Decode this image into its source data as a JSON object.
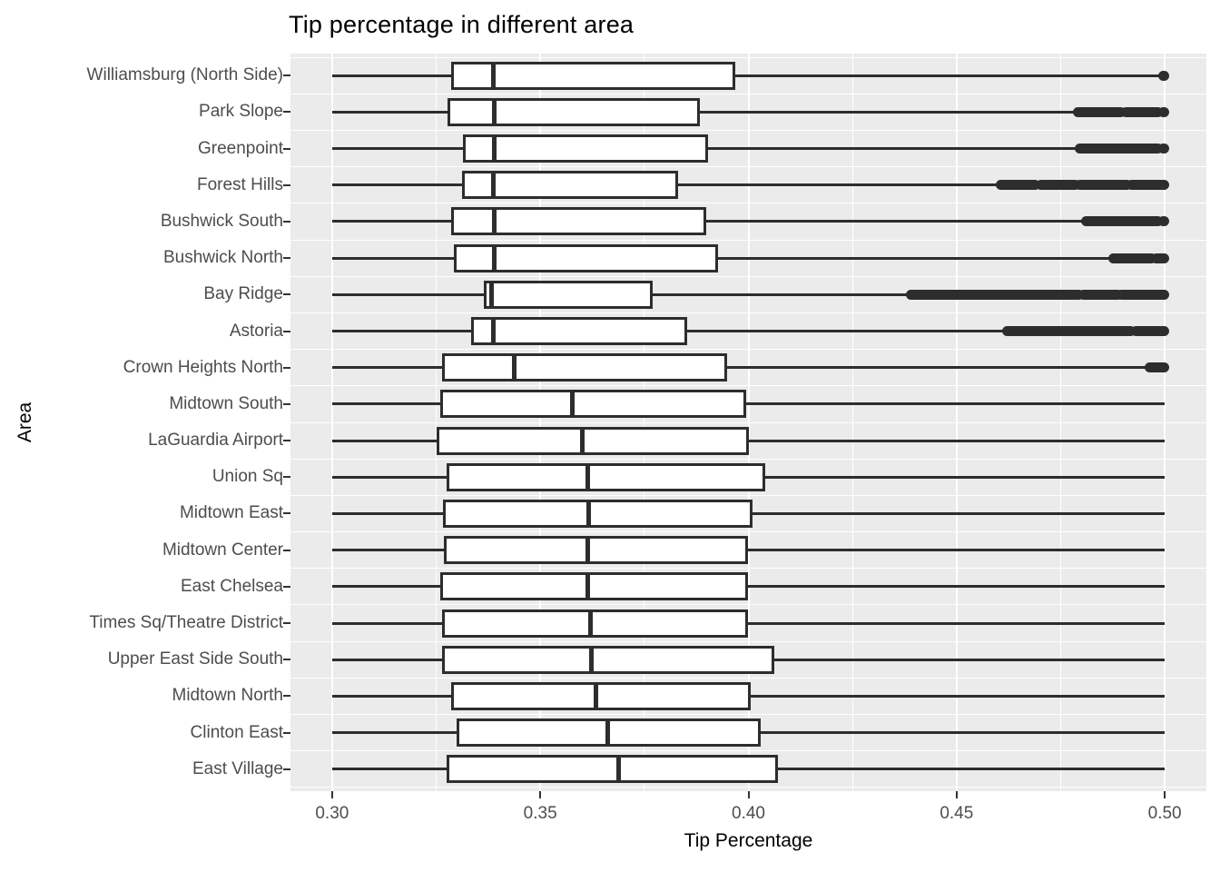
{
  "chart_data": {
    "type": "boxplot",
    "orientation": "horizontal",
    "title": "Tip percentage in different area",
    "xlabel": "Tip Percentage",
    "ylabel": "Area",
    "xlim": [
      0.29,
      0.51
    ],
    "x_ticks": {
      "values": [
        0.3,
        0.35,
        0.4,
        0.45,
        0.5
      ],
      "labels": [
        "0.30",
        "0.35",
        "0.40",
        "0.45",
        "0.50"
      ]
    },
    "x_minor_ticks": [
      0.325,
      0.375,
      0.425,
      0.475
    ],
    "grid": "on",
    "legend": "none",
    "colors": {
      "panel_bg": "#EBEBEB",
      "grid": "#FFFFFF",
      "box_stroke": "#2D2D2D",
      "box_fill": "#FFFFFF",
      "axis_text": "#4D4D4D",
      "title_text": "#000000"
    },
    "categories": [
      "Williamsburg (North Side)",
      "Park Slope",
      "Greenpoint",
      "Forest Hills",
      "Bushwick South",
      "Bushwick North",
      "Bay Ridge",
      "Astoria",
      "Crown Heights North",
      "Midtown South",
      "LaGuardia Airport",
      "Union Sq",
      "Midtown East",
      "Midtown Center",
      "East Chelsea",
      "Times Sq/Theatre District",
      "Upper East Side South",
      "Midtown North",
      "Clinton East",
      "East Village"
    ],
    "series": [
      {
        "name": "Williamsburg (North Side)",
        "whisker_low": 0.3,
        "q1": 0.3286,
        "median": 0.3388,
        "q3": 0.3968,
        "whisker_high": 0.4993,
        "outliers": [
          [
            0.4995,
            0.5
          ]
        ]
      },
      {
        "name": "Park Slope",
        "whisker_low": 0.3,
        "q1": 0.3278,
        "median": 0.339,
        "q3": 0.3883,
        "whisker_high": 0.4788,
        "outliers": [
          [
            0.479,
            0.4895
          ],
          [
            0.4905,
            0.4985
          ],
          [
            0.4995,
            0.5
          ]
        ]
      },
      {
        "name": "Greenpoint",
        "whisker_low": 0.3,
        "q1": 0.3314,
        "median": 0.3389,
        "q3": 0.3904,
        "whisker_high": 0.4793,
        "outliers": [
          [
            0.4795,
            0.4985
          ],
          [
            0.4995,
            0.5
          ]
        ]
      },
      {
        "name": "Forest Hills",
        "whisker_low": 0.3,
        "q1": 0.3312,
        "median": 0.3387,
        "q3": 0.383,
        "whisker_high": 0.46,
        "outliers": [
          [
            0.4605,
            0.469
          ],
          [
            0.47,
            0.4785
          ],
          [
            0.4795,
            0.491
          ],
          [
            0.492,
            0.5
          ]
        ]
      },
      {
        "name": "Bushwick South",
        "whisker_low": 0.3,
        "q1": 0.3287,
        "median": 0.3389,
        "q3": 0.3899,
        "whisker_high": 0.4806,
        "outliers": [
          [
            0.481,
            0.4985
          ],
          [
            0.4995,
            0.5
          ]
        ]
      },
      {
        "name": "Bushwick North",
        "whisker_low": 0.3,
        "q1": 0.3292,
        "median": 0.3389,
        "q3": 0.3928,
        "whisker_high": 0.4873,
        "outliers": [
          [
            0.4875,
            0.497
          ],
          [
            0.4978,
            0.5
          ]
        ]
      },
      {
        "name": "Bay Ridge",
        "whisker_low": 0.3,
        "q1": 0.3364,
        "median": 0.3384,
        "q3": 0.3771,
        "whisker_high": 0.4386,
        "outliers": [
          [
            0.439,
            0.4795
          ],
          [
            0.4803,
            0.4888
          ],
          [
            0.4895,
            0.5
          ]
        ]
      },
      {
        "name": "Astoria",
        "whisker_low": 0.3,
        "q1": 0.3334,
        "median": 0.3387,
        "q3": 0.3852,
        "whisker_high": 0.4619,
        "outliers": [
          [
            0.462,
            0.492
          ],
          [
            0.493,
            0.5
          ]
        ]
      },
      {
        "name": "Crown Heights North",
        "whisker_low": 0.3,
        "q1": 0.3264,
        "median": 0.3438,
        "q3": 0.3948,
        "whisker_high": 0.496,
        "outliers": [
          [
            0.4963,
            0.5
          ]
        ]
      },
      {
        "name": "Midtown South",
        "whisker_low": 0.3,
        "q1": 0.326,
        "median": 0.3576,
        "q3": 0.3994,
        "whisker_high": 0.5,
        "outliers": []
      },
      {
        "name": "LaGuardia Airport",
        "whisker_low": 0.3,
        "q1": 0.325,
        "median": 0.36,
        "q3": 0.4002,
        "whisker_high": 0.5,
        "outliers": []
      },
      {
        "name": "Union Sq",
        "whisker_low": 0.3,
        "q1": 0.3276,
        "median": 0.3614,
        "q3": 0.4041,
        "whisker_high": 0.5,
        "outliers": []
      },
      {
        "name": "Midtown East",
        "whisker_low": 0.3,
        "q1": 0.3267,
        "median": 0.3617,
        "q3": 0.401,
        "whisker_high": 0.5,
        "outliers": []
      },
      {
        "name": "Midtown Center",
        "whisker_low": 0.3,
        "q1": 0.3268,
        "median": 0.3614,
        "q3": 0.3999,
        "whisker_high": 0.5,
        "outliers": []
      },
      {
        "name": "East Chelsea",
        "whisker_low": 0.3,
        "q1": 0.326,
        "median": 0.3614,
        "q3": 0.3999,
        "whisker_high": 0.5,
        "outliers": []
      },
      {
        "name": "Times Sq/Theatre District",
        "whisker_low": 0.3,
        "q1": 0.3265,
        "median": 0.3621,
        "q3": 0.3999,
        "whisker_high": 0.5,
        "outliers": []
      },
      {
        "name": "Upper East Side South",
        "whisker_low": 0.3,
        "q1": 0.3264,
        "median": 0.3623,
        "q3": 0.4063,
        "whisker_high": 0.5,
        "outliers": []
      },
      {
        "name": "Midtown North",
        "whisker_low": 0.3,
        "q1": 0.3285,
        "median": 0.3634,
        "q3": 0.4005,
        "whisker_high": 0.5,
        "outliers": []
      },
      {
        "name": "Clinton East",
        "whisker_low": 0.3,
        "q1": 0.3298,
        "median": 0.3663,
        "q3": 0.403,
        "whisker_high": 0.5,
        "outliers": []
      },
      {
        "name": "East Village",
        "whisker_low": 0.3,
        "q1": 0.3276,
        "median": 0.3688,
        "q3": 0.407,
        "whisker_high": 0.5,
        "outliers": []
      }
    ]
  }
}
